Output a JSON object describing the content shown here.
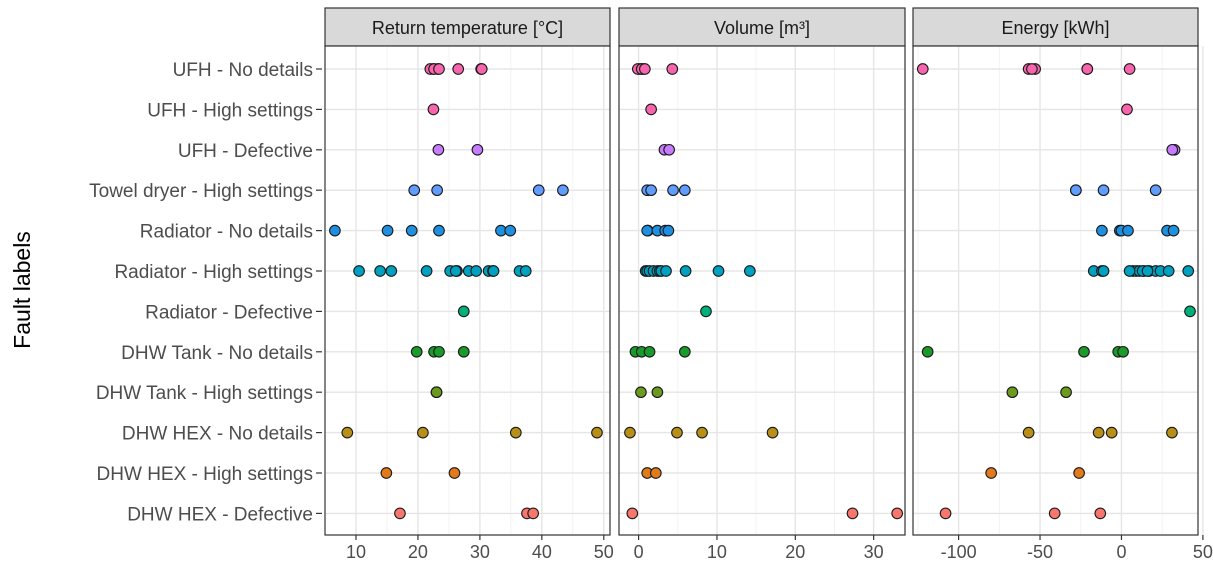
{
  "chart_data": {
    "type": "scatter",
    "ylabel": "Fault labels",
    "xlabel": "",
    "categories": [
      "UFH - No details",
      "UFH - High settings",
      "UFH - Defective",
      "Towel dryer - High settings",
      "Radiator - No details",
      "Radiator - High settings",
      "Radiator - Defective",
      "DHW Tank - No details",
      "DHW Tank - High settings",
      "DHW HEX - No details",
      "DHW HEX - High settings",
      "DHW HEX - Defective"
    ],
    "category_colors": [
      "#f766ac",
      "#f766ac",
      "#c77cff",
      "#619cff",
      "#1f8fe0",
      "#00a0c0",
      "#00b07a",
      "#1a9a2a",
      "#6b9a1f",
      "#b89018",
      "#e07a1a",
      "#f8766d"
    ],
    "grid": true,
    "legend": "none",
    "panels": [
      {
        "title": "Return temperature [°C]",
        "xlim": [
          5,
          51
        ],
        "xticks": [
          10,
          20,
          30,
          40,
          50
        ],
        "series": [
          {
            "category": "UFH - No details",
            "x": [
              22.5,
              23.2,
              22.0,
              22.6,
              23.4,
              30.2,
              30.3,
              26.5
            ]
          },
          {
            "category": "UFH - High settings",
            "x": [
              22.5
            ]
          },
          {
            "category": "UFH - Defective",
            "x": [
              23.3,
              29.6
            ]
          },
          {
            "category": "Towel dryer - High settings",
            "x": [
              19.4,
              23.1,
              39.5,
              43.4
            ]
          },
          {
            "category": "Radiator - No details",
            "x": [
              6.6,
              15.1,
              19.0,
              23.4,
              33.4,
              34.9
            ]
          },
          {
            "category": "Radiator - High settings",
            "x": [
              10.5,
              13.9,
              15.7,
              21.4,
              25.2,
              26.3,
              26.1,
              28.2,
              29.4,
              31.4,
              32.1,
              32.2,
              36.4,
              37.4
            ]
          },
          {
            "category": "Radiator - Defective",
            "x": [
              27.4
            ]
          },
          {
            "category": "DHW Tank - No details",
            "x": [
              19.8,
              22.6,
              23.4,
              27.4
            ]
          },
          {
            "category": "DHW Tank - High settings",
            "x": [
              23.0,
              23.0
            ]
          },
          {
            "category": "DHW HEX - No details",
            "x": [
              8.6,
              20.8,
              35.8,
              48.9
            ]
          },
          {
            "category": "DHW HEX - High settings",
            "x": [
              14.9,
              25.9
            ]
          },
          {
            "category": "DHW HEX - Defective",
            "x": [
              17.1,
              37.6,
              38.6
            ]
          }
        ]
      },
      {
        "title": "Volume [m³]",
        "xlim": [
          -2.5,
          34
        ],
        "xticks": [
          0,
          10,
          20,
          30
        ],
        "series": [
          {
            "category": "UFH - No details",
            "x": [
              0.6,
              0.2,
              -0.1,
              0.4,
              0.8,
              4.3
            ]
          },
          {
            "category": "UFH - High settings",
            "x": [
              1.6
            ]
          },
          {
            "category": "UFH - Defective",
            "x": [
              3.3,
              3.9
            ]
          },
          {
            "category": "Towel dryer - High settings",
            "x": [
              1.1,
              1.6,
              4.4,
              5.9
            ]
          },
          {
            "category": "Radiator - No details",
            "x": [
              1.2,
              1.1,
              2.4,
              3.4,
              3.8
            ]
          },
          {
            "category": "Radiator - High settings",
            "x": [
              0.9,
              1.1,
              1.4,
              1.9,
              2.4,
              2.7,
              2.9,
              3.5,
              6.0,
              10.2,
              14.2
            ]
          },
          {
            "category": "Radiator - Defective",
            "x": [
              8.6
            ]
          },
          {
            "category": "DHW Tank - No details",
            "x": [
              -0.4,
              0.4,
              1.4,
              5.9
            ]
          },
          {
            "category": "DHW Tank - High settings",
            "x": [
              0.3,
              2.4
            ]
          },
          {
            "category": "DHW HEX - No details",
            "x": [
              -1.1,
              4.9,
              8.1,
              17.1
            ]
          },
          {
            "category": "DHW HEX - High settings",
            "x": [
              1.1,
              2.2
            ]
          },
          {
            "category": "DHW HEX - Defective",
            "x": [
              -0.8,
              27.3,
              33.0
            ]
          }
        ]
      },
      {
        "title": "Energy [kWh]",
        "xlim": [
          -128,
          47
        ],
        "xticks": [
          -100,
          -50,
          0,
          50
        ],
        "series": [
          {
            "category": "UFH - No details",
            "x": [
              -122,
              -57,
              -53,
              -55,
              -21,
              -21,
              5
            ]
          },
          {
            "category": "UFH - High settings",
            "x": [
              3.4
            ]
          },
          {
            "category": "UFH - Defective",
            "x": [
              32.6,
              31.2
            ]
          },
          {
            "category": "Towel dryer - High settings",
            "x": [
              -28,
              -28,
              -11,
              21
            ]
          },
          {
            "category": "Radiator - No details",
            "x": [
              -1,
              -12,
              0,
              4,
              28,
              32
            ]
          },
          {
            "category": "Radiator - High settings",
            "x": [
              -17,
              -12,
              -11,
              7,
              9,
              11,
              14,
              17,
              21,
              24,
              29,
              41,
              5,
              13,
              16
            ]
          },
          {
            "category": "Radiator - Defective",
            "x": [
              42.1
            ]
          },
          {
            "category": "DHW Tank - No details",
            "x": [
              -119,
              -23,
              -2,
              1
            ]
          },
          {
            "category": "DHW Tank - High settings",
            "x": [
              -67,
              -34
            ]
          },
          {
            "category": "DHW HEX - No details",
            "x": [
              -57,
              -14,
              -6,
              31
            ]
          },
          {
            "category": "DHW HEX - High settings",
            "x": [
              -80,
              -26
            ]
          },
          {
            "category": "DHW HEX - Defective",
            "x": [
              -108,
              -41,
              -13
            ]
          }
        ]
      }
    ]
  }
}
